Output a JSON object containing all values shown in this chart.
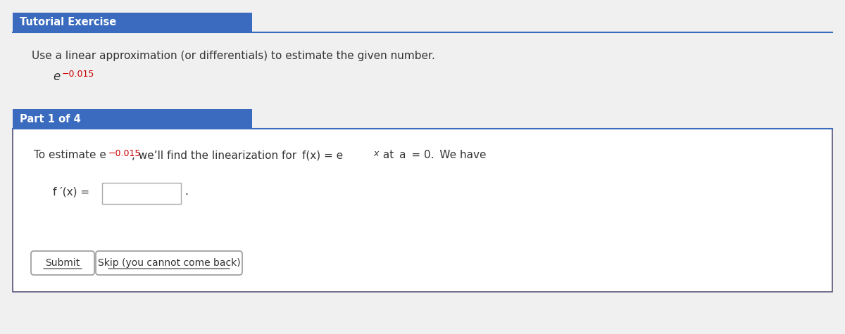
{
  "bg_color": "#f0f0f0",
  "white": "#ffffff",
  "header_blue": "#3a6bbf",
  "header_text_color": "#ffffff",
  "body_text_color": "#333333",
  "red_color": "#cc0000",
  "dark_border": "#555577",
  "tutorial_header": "Tutorial Exercise",
  "main_text": "Use a linear approximation (or differentials) to estimate the given number.",
  "part_header": "Part 1 of 4",
  "part1_superscript": "−0.015",
  "button1": "Submit",
  "button2": "Skip (you cannot come back)"
}
